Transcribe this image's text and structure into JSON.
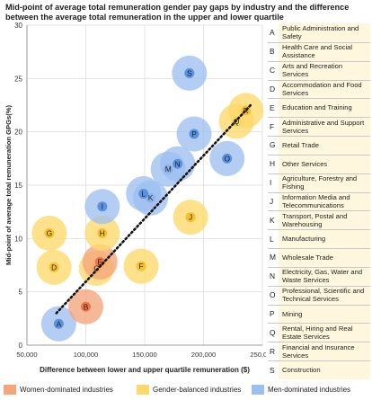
{
  "chart_data": {
    "type": "scatter",
    "title": "Mid-point of average total remuneration gender pay gaps by industry and the difference between the average total remuneration in the upper and lower quartile",
    "xlabel": "Difference between lower and upper quartile remuneration ($)",
    "ylabel": "Mid-point of average total remuneration GPGs(%)",
    "xlim": [
      50000,
      250000
    ],
    "ylim": [
      0,
      30
    ],
    "x_ticks": [
      {
        "value": 50000,
        "label": "50,000"
      },
      {
        "value": 100000,
        "label": "100,000"
      },
      {
        "value": 150000,
        "label": "150,000"
      },
      {
        "value": 200000,
        "label": "200,000"
      },
      {
        "value": 250000,
        "label": "250,000"
      }
    ],
    "y_ticks": [
      {
        "value": 0,
        "label": "0"
      },
      {
        "value": 5,
        "label": "5"
      },
      {
        "value": 10,
        "label": "10"
      },
      {
        "value": 15,
        "label": "15"
      },
      {
        "value": 20,
        "label": "20"
      },
      {
        "value": 25,
        "label": "25"
      },
      {
        "value": 30,
        "label": "30"
      }
    ],
    "trendline": {
      "x": [
        75000,
        240000
      ],
      "y": [
        3.0,
        22.5
      ],
      "style": "dotted"
    },
    "colors": {
      "women": "#f4a57a",
      "balanced": "#fcd96a",
      "men": "#9dbff0",
      "women_core": "#ef7448",
      "balanced_core": "#f5c22e",
      "men_core": "#5a91e0"
    },
    "points": [
      {
        "label": "A",
        "x": 77000,
        "y": 2.0,
        "group": "men"
      },
      {
        "label": "B",
        "x": 100000,
        "y": 3.6,
        "group": "women"
      },
      {
        "label": "C",
        "x": 109000,
        "y": 7.2,
        "group": "balanced"
      },
      {
        "label": "D",
        "x": 73000,
        "y": 7.3,
        "group": "balanced"
      },
      {
        "label": "E",
        "x": 112000,
        "y": 7.8,
        "group": "women"
      },
      {
        "label": "F",
        "x": 147000,
        "y": 7.4,
        "group": "balanced"
      },
      {
        "label": "G",
        "x": 69000,
        "y": 10.5,
        "group": "balanced"
      },
      {
        "label": "H",
        "x": 114000,
        "y": 10.5,
        "group": "balanced"
      },
      {
        "label": "I",
        "x": 114000,
        "y": 13.0,
        "group": "men"
      },
      {
        "label": "J",
        "x": 189000,
        "y": 12.0,
        "group": "balanced"
      },
      {
        "label": "K",
        "x": 155000,
        "y": 13.8,
        "group": "men"
      },
      {
        "label": "L",
        "x": 149000,
        "y": 14.2,
        "group": "men"
      },
      {
        "label": "M",
        "x": 170000,
        "y": 16.5,
        "group": "men"
      },
      {
        "label": "N",
        "x": 178000,
        "y": 17.0,
        "group": "men"
      },
      {
        "label": "O",
        "x": 220000,
        "y": 17.5,
        "group": "men"
      },
      {
        "label": "P",
        "x": 192000,
        "y": 19.8,
        "group": "men"
      },
      {
        "label": "Q",
        "x": 228000,
        "y": 21.0,
        "group": "balanced"
      },
      {
        "label": "R",
        "x": 236000,
        "y": 22.0,
        "group": "balanced"
      },
      {
        "label": "S",
        "x": 188000,
        "y": 25.5,
        "group": "men"
      }
    ],
    "legend": [
      {
        "group": "women",
        "label": "Women-dominated industries"
      },
      {
        "group": "balanced",
        "label": "Gender-balanced industries"
      },
      {
        "group": "men",
        "label": "Men-dominated industries"
      }
    ],
    "key": [
      {
        "letter": "A",
        "name": "Public Administration and Safety"
      },
      {
        "letter": "B",
        "name": "Health Care and Social Assistance"
      },
      {
        "letter": "C",
        "name": "Arts and Recreation Services"
      },
      {
        "letter": "D",
        "name": "Accommodation and Food Services"
      },
      {
        "letter": "E",
        "name": "Education and Training"
      },
      {
        "letter": "F",
        "name": "Administrative and Support Services"
      },
      {
        "letter": "G",
        "name": "Retail Trade"
      },
      {
        "letter": "H",
        "name": "Other Services"
      },
      {
        "letter": "I",
        "name": "Agriculture, Forestry and Fishing"
      },
      {
        "letter": "J",
        "name": "Information Media and Telecommunications"
      },
      {
        "letter": "K",
        "name": "Transport, Postal and Warehousing"
      },
      {
        "letter": "L",
        "name": "Manufacturing"
      },
      {
        "letter": "M",
        "name": "Wholesale Trade"
      },
      {
        "letter": "N",
        "name": "Electricity, Gas, Water and Waste Services"
      },
      {
        "letter": "O",
        "name": "Professional, Scientific and Technical Services"
      },
      {
        "letter": "P",
        "name": "Mining"
      },
      {
        "letter": "Q",
        "name": "Rental, Hiring and Real Estate Services"
      },
      {
        "letter": "R",
        "name": "Financial and Insurance Services"
      },
      {
        "letter": "S",
        "name": "Construction"
      }
    ]
  }
}
